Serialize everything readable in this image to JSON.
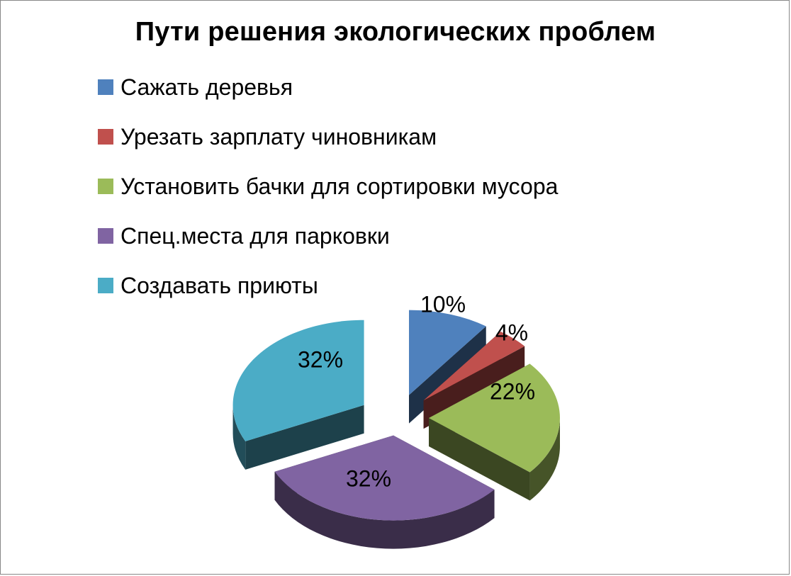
{
  "chart_data": {
    "type": "pie",
    "title": "Пути решения экологических проблем",
    "categories": [
      "Сажать деревья",
      "Урезать зарплату чиновникам",
      "Установить бачки для сортировки мусора",
      "Спец.места для парковки",
      "Создавать приюты"
    ],
    "values": [
      10,
      4,
      22,
      32,
      32
    ],
    "labels": [
      "10%",
      "4%",
      "22%",
      "32%",
      "32%"
    ],
    "colors": [
      "#4f81bd",
      "#c0504d",
      "#9bbb59",
      "#8064a2",
      "#4bacc6"
    ],
    "legend_position": "top-left",
    "style": "3d-exploded"
  }
}
